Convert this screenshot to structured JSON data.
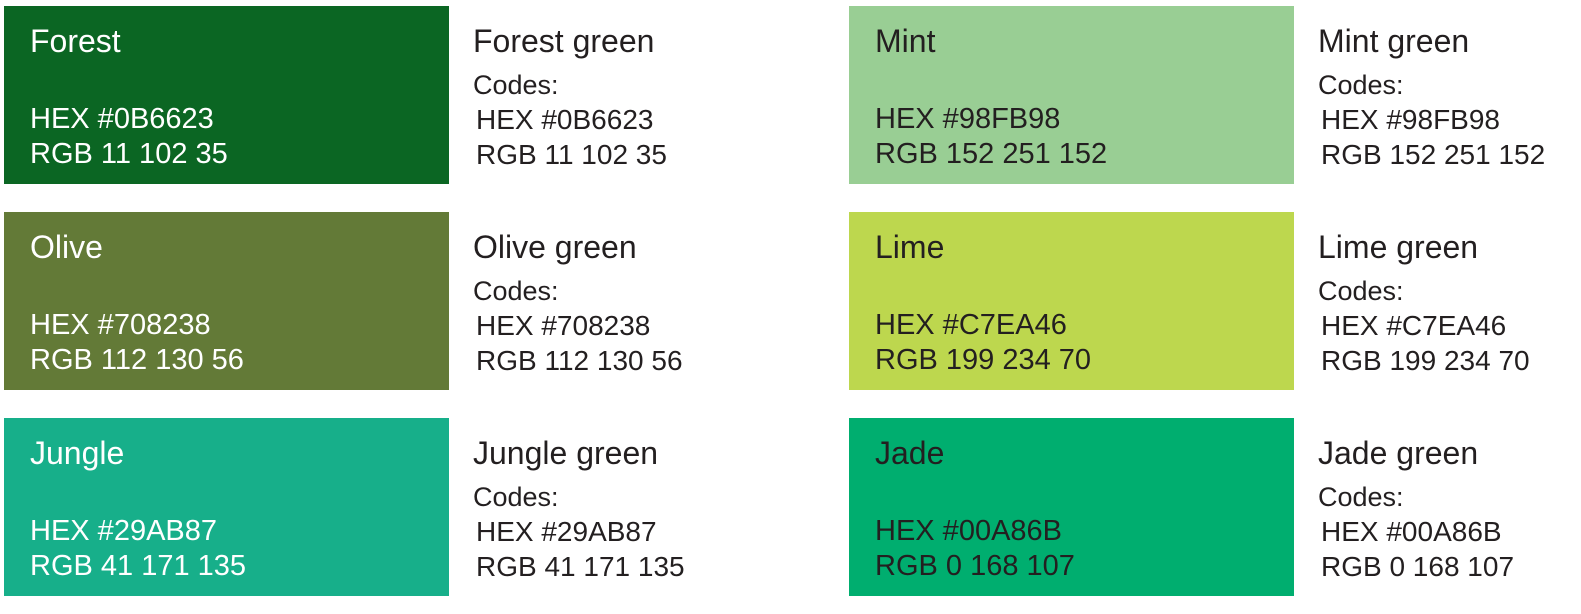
{
  "swatches": [
    {
      "name": "Forest",
      "title": "Forest green",
      "codes_label": "Codes:",
      "hex": "HEX #0B6623",
      "rgb": "RGB 11 102 35",
      "color": "#0B6623",
      "text_color": "#ffffff"
    },
    {
      "name": "Olive",
      "title": "Olive green",
      "codes_label": "Codes:",
      "hex": "HEX #708238",
      "rgb": "RGB 112 130 56",
      "color": "#637A37",
      "text_color": "#ffffff"
    },
    {
      "name": "Jungle",
      "title": "Jungle green",
      "codes_label": "Codes:",
      "hex": "HEX #29AB87",
      "rgb": "RGB 41 171 135",
      "color": "#17AF8A",
      "text_color": "#ffffff"
    },
    {
      "name": "Mint",
      "title": "Mint green",
      "codes_label": "Codes:",
      "hex": "HEX #98FB98",
      "rgb": "RGB 152 251 152",
      "color": "#99CE94",
      "text_color": "#231f20"
    },
    {
      "name": "Lime",
      "title": "Lime green",
      "codes_label": "Codes:",
      "hex": "HEX #C7EA46",
      "rgb": "RGB 199 234 70",
      "color": "#BDD74E",
      "text_color": "#231f20"
    },
    {
      "name": "Jade",
      "title": "Jade green",
      "codes_label": "Codes:",
      "hex": "HEX #00A86B",
      "rgb": "RGB 0 168 107",
      "color": "#00AE6F",
      "text_color": "#231f20"
    }
  ]
}
